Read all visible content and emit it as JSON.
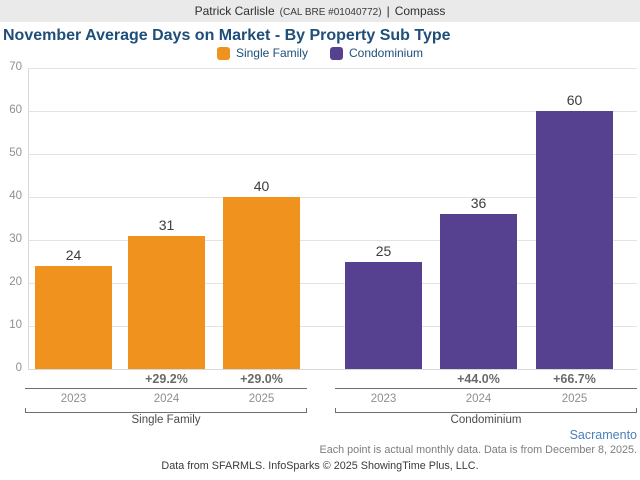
{
  "header": {
    "agent_name": "Patrick Carlisle",
    "license": "(CAL BRE #01040772)",
    "separator": "|",
    "brand": "Compass"
  },
  "title": "November Average Days on Market - By Property Sub Type",
  "legend": {
    "items": [
      {
        "label": "Single Family",
        "color": "#F0921E",
        "icon": "orange-square-swatch"
      },
      {
        "label": "Condominium",
        "color": "#554190",
        "icon": "purple-square-swatch"
      }
    ]
  },
  "chart_data": {
    "type": "bar",
    "title": "November Average Days on Market - By Property Sub Type",
    "ylabel": "",
    "xlabel": "",
    "ylim": [
      0,
      70
    ],
    "ytick_interval": 10,
    "yticks": [
      0,
      10,
      20,
      30,
      40,
      50,
      60,
      70
    ],
    "grid": true,
    "legend_position": "top-center",
    "categories": [
      "2023",
      "2024",
      "2025"
    ],
    "groups": [
      {
        "name": "Single Family",
        "color": "#F0921E",
        "categories": [
          "2023",
          "2024",
          "2025"
        ],
        "values": [
          24,
          31,
          40
        ],
        "pct_changes": [
          null,
          "+29.2%",
          "+29.0%"
        ]
      },
      {
        "name": "Condominium",
        "color": "#554190",
        "categories": [
          "2023",
          "2024",
          "2025"
        ],
        "values": [
          25,
          36,
          60
        ],
        "pct_changes": [
          null,
          "+44.0%",
          "+66.7%"
        ]
      }
    ]
  },
  "footer": {
    "region_link": "Sacramento",
    "note": "Each point is actual monthly data. Data is from December 8, 2025.",
    "attribution": "Data from SFARMLS. InfoSparks © 2025 ShowingTime Plus, LLC."
  },
  "colors": {
    "accent_orange": "#F0921E",
    "accent_purple": "#554190",
    "title_navy": "#1E4E79",
    "header_bg": "#EAEAEA",
    "link_blue": "#4C7FB8"
  }
}
